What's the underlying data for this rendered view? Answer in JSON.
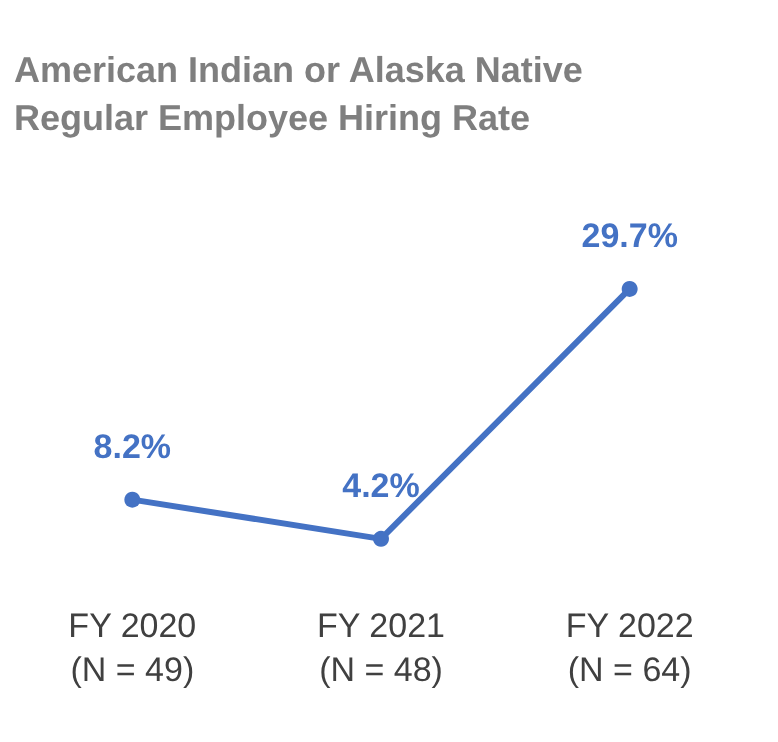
{
  "chart_data": {
    "type": "line",
    "title": "American Indian or Alaska Native\nRegular Employee Hiring Rate",
    "categories": [
      "FY 2020\n(N = 49)",
      "FY 2021\n(N = 48)",
      "FY 2022\n(N = 64)"
    ],
    "series": [
      {
        "color": "#4472c4",
        "values": [
          8.2,
          4.2,
          29.7
        ],
        "value_labels": [
          "8.2%",
          "4.2%",
          "29.7%"
        ]
      }
    ],
    "marker": "circle",
    "line_style": "solid"
  }
}
